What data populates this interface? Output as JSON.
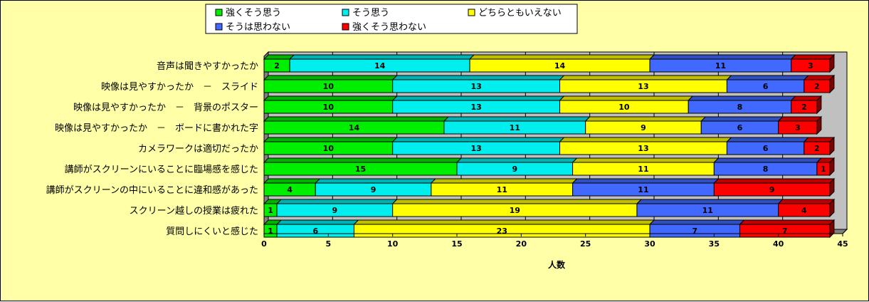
{
  "chart_data": {
    "type": "bar",
    "orientation": "horizontal",
    "stacked": true,
    "xlabel": "人数",
    "xlim": [
      0,
      45
    ],
    "xticks": [
      0,
      5,
      10,
      15,
      20,
      25,
      30,
      35,
      40,
      45
    ],
    "grid": "vertical",
    "legend_position": "top",
    "categories": [
      "音声は聞きやすかったか",
      "映像は見やすかったか　－　スライド",
      "映像は見やすかったか　－　背景のポスター",
      "映像は見やすかったか　－　ボードに書かれた字",
      "カメラワークは適切だったか",
      "講師がスクリーンにいることに臨場感を感じた",
      "講師がスクリーンの中にいることに違和感があった",
      "スクリーン越しの授業は疲れた",
      "質問しにくいと感じた"
    ],
    "series": [
      {
        "name": "強くそう思う",
        "color": "#00ee00",
        "values": [
          2,
          10,
          10,
          14,
          10,
          15,
          4,
          1,
          1
        ]
      },
      {
        "name": "そう思う",
        "color": "#00eeee",
        "values": [
          14,
          13,
          13,
          11,
          13,
          9,
          9,
          9,
          6
        ]
      },
      {
        "name": "どちらともいえない",
        "color": "#ffff00",
        "values": [
          14,
          13,
          10,
          9,
          13,
          11,
          11,
          19,
          23
        ]
      },
      {
        "name": "そうは思わない",
        "color": "#4169ff",
        "values": [
          11,
          6,
          8,
          6,
          6,
          8,
          11,
          11,
          7
        ]
      },
      {
        "name": "強くそう思わない",
        "color": "#ff0000",
        "values": [
          3,
          2,
          2,
          3,
          2,
          1,
          9,
          4,
          7
        ]
      }
    ]
  }
}
